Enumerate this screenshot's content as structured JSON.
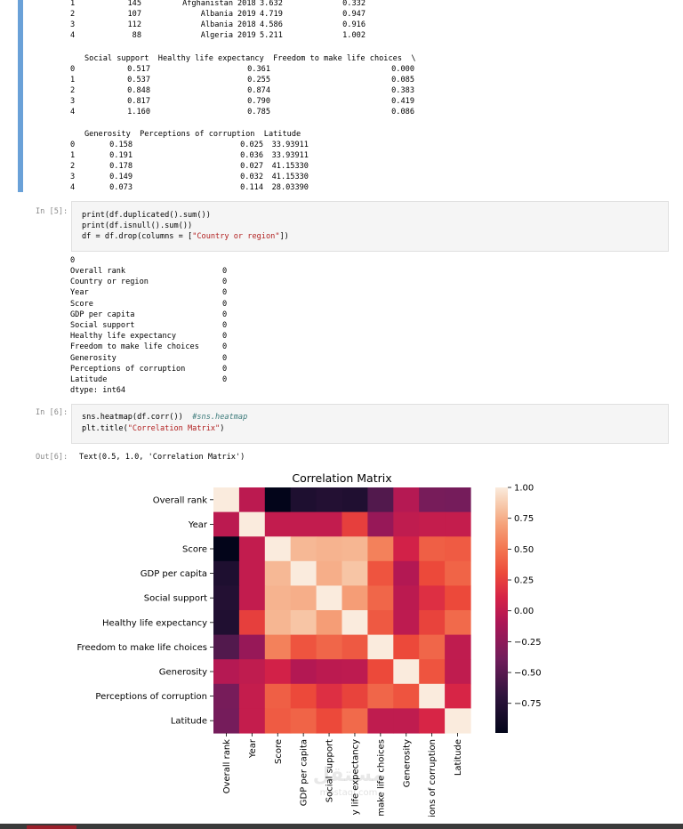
{
  "df_head_top": {
    "rows": [
      {
        "idx": "1",
        "c1": "145",
        "c2": "Afghanistan",
        "c3": "2018",
        "c4": "3.632",
        "c5": "0.332"
      },
      {
        "idx": "2",
        "c1": "107",
        "c2": "Albania",
        "c3": "2019",
        "c4": "4.719",
        "c5": "0.947"
      },
      {
        "idx": "3",
        "c1": "112",
        "c2": "Albania",
        "c3": "2018",
        "c4": "4.586",
        "c5": "0.916"
      },
      {
        "idx": "4",
        "c1": "88",
        "c2": "Algeria",
        "c3": "2019",
        "c4": "5.211",
        "c5": "1.002"
      }
    ]
  },
  "df_head_mid": {
    "header": "Social support  Healthy life expectancy  Freedom to make life choices  \\",
    "rows": [
      {
        "idx": "0",
        "a": "0.517",
        "b": "0.361",
        "c": "0.000"
      },
      {
        "idx": "1",
        "a": "0.537",
        "b": "0.255",
        "c": "0.085"
      },
      {
        "idx": "2",
        "a": "0.848",
        "b": "0.874",
        "c": "0.383"
      },
      {
        "idx": "3",
        "a": "0.817",
        "b": "0.790",
        "c": "0.419"
      },
      {
        "idx": "4",
        "a": "1.160",
        "b": "0.785",
        "c": "0.086"
      }
    ]
  },
  "df_head_bot": {
    "header": "Generosity  Perceptions of corruption  Latitude",
    "rows": [
      {
        "idx": "0",
        "a": "0.158",
        "b": "0.025",
        "c": "33.93911"
      },
      {
        "idx": "1",
        "a": "0.191",
        "b": "0.036",
        "c": "33.93911"
      },
      {
        "idx": "2",
        "a": "0.178",
        "b": "0.027",
        "c": "41.15330"
      },
      {
        "idx": "3",
        "a": "0.149",
        "b": "0.032",
        "c": "41.15330"
      },
      {
        "idx": "4",
        "a": "0.073",
        "b": "0.114",
        "c": "28.03390"
      }
    ]
  },
  "cell5": {
    "prompt": "In [5]:",
    "lines": [
      "print(df.duplicated().sum())",
      "print(df.isnull().sum())",
      "df = df.drop(columns = [\"Country or region\"])"
    ],
    "output_first": "0",
    "null_rows": [
      {
        "name": "Overall rank",
        "v": "0"
      },
      {
        "name": "Country or region",
        "v": "0"
      },
      {
        "name": "Year",
        "v": "0"
      },
      {
        "name": "Score",
        "v": "0"
      },
      {
        "name": "GDP per capita",
        "v": "0"
      },
      {
        "name": "Social support",
        "v": "0"
      },
      {
        "name": "Healthy life expectancy",
        "v": "0"
      },
      {
        "name": "Freedom to make life choices",
        "v": "0"
      },
      {
        "name": "Generosity",
        "v": "0"
      },
      {
        "name": "Perceptions of corruption",
        "v": "0"
      },
      {
        "name": "Latitude",
        "v": "0"
      }
    ],
    "dtype": "dtype: int64"
  },
  "cell6": {
    "prompt": "In [6]:",
    "line1_code": "sns.heatmap(df.corr())  ",
    "line1_comment": "#sns.heatmap",
    "line2_pre": "plt.title(",
    "line2_str": "\"Correlation Matrix\"",
    "line2_post": ")",
    "out_prompt": "Out[6]:",
    "out_text": "Text(0.5, 1.0, 'Correlation Matrix')"
  },
  "chart_data": {
    "type": "heatmap",
    "title": "Correlation Matrix",
    "labels": [
      "Overall rank",
      "Year",
      "Score",
      "GDP per capita",
      "Social support",
      "Healthy life expectancy",
      "Freedom to make life choices",
      "Generosity",
      "Perceptions of corruption",
      "Latitude"
    ],
    "x_tick_labels": [
      "Overall rank",
      "Year",
      "Score",
      "GDP per capita",
      "Social support",
      "y life expectancy",
      "make life choices",
      "Generosity",
      "ions of corruption",
      "Latitude"
    ],
    "matrix": [
      [
        1.0,
        -0.02,
        -0.99,
        -0.8,
        -0.77,
        -0.79,
        -0.53,
        -0.05,
        -0.36,
        -0.37
      ],
      [
        -0.02,
        1.0,
        0.01,
        0.01,
        0.01,
        0.25,
        -0.2,
        0.0,
        0.02,
        0.02
      ],
      [
        -0.99,
        0.01,
        1.0,
        0.79,
        0.77,
        0.78,
        0.55,
        0.09,
        0.4,
        0.38
      ],
      [
        -0.8,
        0.01,
        0.79,
        1.0,
        0.75,
        0.84,
        0.35,
        -0.06,
        0.3,
        0.42
      ],
      [
        -0.77,
        0.01,
        0.77,
        0.75,
        1.0,
        0.68,
        0.43,
        -0.02,
        0.17,
        0.3
      ],
      [
        -0.79,
        0.25,
        0.78,
        0.84,
        0.68,
        1.0,
        0.37,
        -0.01,
        0.27,
        0.45
      ],
      [
        -0.53,
        -0.2,
        0.55,
        0.35,
        0.43,
        0.37,
        1.0,
        0.3,
        0.43,
        0.0
      ],
      [
        -0.05,
        0.0,
        0.09,
        -0.06,
        -0.02,
        -0.01,
        0.3,
        1.0,
        0.35,
        0.0
      ],
      [
        -0.36,
        0.02,
        0.4,
        0.3,
        0.17,
        0.27,
        0.43,
        0.35,
        1.0,
        0.12
      ],
      [
        -0.37,
        0.02,
        0.38,
        0.42,
        0.3,
        0.45,
        0.0,
        0.0,
        0.12,
        1.0
      ]
    ],
    "colorbar_ticks": [
      "1.00",
      "0.75",
      "0.50",
      "0.25",
      "0.00",
      "−0.25",
      "−0.50",
      "−0.75"
    ],
    "colorbar_tick_values": [
      1.0,
      0.75,
      0.5,
      0.25,
      0.0,
      -0.25,
      -0.5,
      -0.75
    ],
    "vmin": -0.99,
    "vmax": 1.0,
    "colormap": "rocket"
  },
  "watermark": "مستقل",
  "watermark_sub": "mostaql.com"
}
